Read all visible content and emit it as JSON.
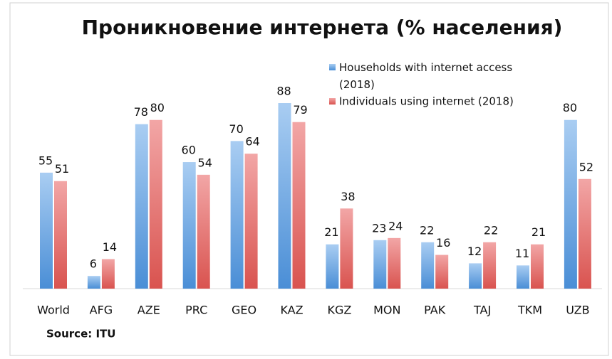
{
  "chart_data": {
    "type": "bar",
    "title": "Проникновение интернета (% населения)",
    "categories": [
      "World",
      "AFG",
      "AZE",
      "PRC",
      "GEO",
      "KAZ",
      "KGZ",
      "MON",
      "PAK",
      "TAJ",
      "TKM",
      "UZB"
    ],
    "series": [
      {
        "name": "Households with internet access (2018)",
        "color": "#5b9bd5",
        "values": [
          55,
          6,
          78,
          60,
          70,
          88,
          21,
          23,
          22,
          12,
          11,
          80
        ]
      },
      {
        "name": "Individuals using internet (2018)",
        "color": "#e06666",
        "values": [
          51,
          14,
          80,
          54,
          64,
          79,
          38,
          24,
          16,
          22,
          21,
          52
        ]
      }
    ],
    "source": "Source: ITU"
  }
}
